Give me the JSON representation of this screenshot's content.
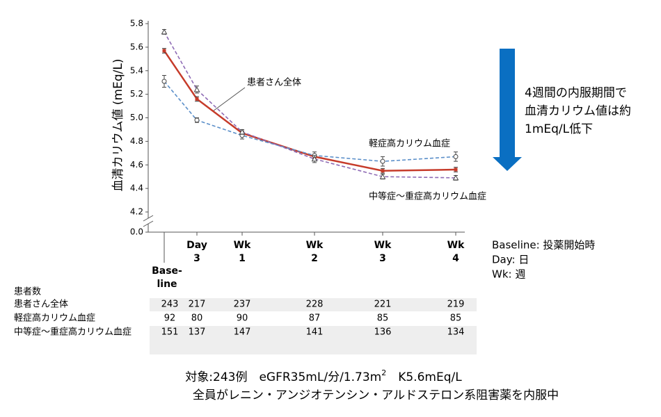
{
  "chart_data": {
    "type": "line",
    "y_label": "血清カリウム値 (mEq/L)",
    "categories": [
      [
        "Base-",
        "line"
      ],
      [
        "Day",
        "3"
      ],
      [
        "Wk",
        "1"
      ],
      [
        "Wk",
        "2"
      ],
      [
        "Wk",
        "3"
      ],
      [
        "Wk",
        "4"
      ]
    ],
    "ylim": [
      4.2,
      5.8
    ],
    "yticks": [
      {
        "value": 0,
        "label": "0.0"
      },
      4.2,
      4.4,
      4.6,
      4.8,
      {
        "value": 5,
        "label": "5.0"
      },
      5.2,
      5.4,
      5.6,
      5.8
    ],
    "axis_break": true,
    "series": [
      {
        "name": "患者さん全体",
        "color": "#c63b2a",
        "style": "solid",
        "marker": "square",
        "values": [
          5.57,
          5.16,
          4.87,
          4.67,
          4.55,
          4.56
        ],
        "errors": [
          0.02,
          0.02,
          0.02,
          0.02,
          0.02,
          0.02
        ]
      },
      {
        "name": "軽症高カリウム血症",
        "color": "#5b8fc9",
        "style": "dashed",
        "marker": "circle",
        "values": [
          5.31,
          4.98,
          4.85,
          4.68,
          4.63,
          4.67
        ],
        "errors": [
          0.05,
          0.02,
          0.03,
          0.03,
          0.04,
          0.04
        ]
      },
      {
        "name": "中等症～重症高カリウム血症",
        "color": "#8e6bb5",
        "style": "dashed",
        "marker": "triangle",
        "values": [
          5.73,
          5.24,
          4.88,
          4.65,
          4.5,
          4.49
        ],
        "errors": [
          0.02,
          0.03,
          0.02,
          0.03,
          0.02,
          0.02
        ]
      }
    ],
    "arrow_note": [
      "4週間の内服期間で",
      "血清カリウム値は約",
      "1mEq/L低下"
    ],
    "abbreviations": [
      "Baseline: 投薬開始時",
      "Day: 日",
      "Wk: 週"
    ]
  },
  "table": {
    "title": "患者数",
    "rows": [
      {
        "label": "患者さん全体",
        "counts": [
          243,
          217,
          237,
          228,
          221,
          219
        ]
      },
      {
        "label": "軽症高カリウム血症",
        "counts": [
          92,
          80,
          90,
          87,
          85,
          85
        ]
      },
      {
        "label": "中等症～重症高カリウム血症",
        "counts": [
          151,
          137,
          147,
          141,
          136,
          134
        ]
      }
    ]
  },
  "footer": {
    "line1": [
      "対象:243例　eGFR35mL/分/1.73m",
      "2",
      "　K5.6mEq/L"
    ],
    "line2": "全員がレニン・アンジオテンシン・アルドステロン系阻害薬を内服中"
  }
}
